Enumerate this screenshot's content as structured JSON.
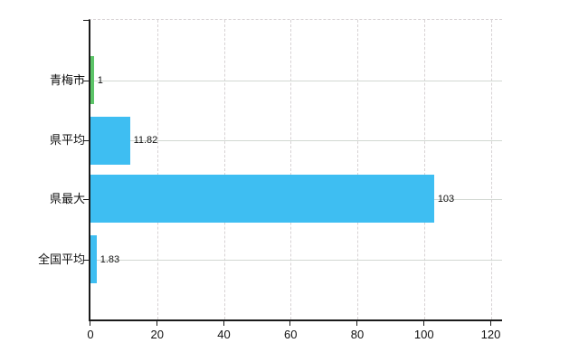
{
  "chart_data": {
    "type": "bar",
    "orientation": "horizontal",
    "title": "",
    "xlabel": "",
    "ylabel": "",
    "categories": [
      "青梅市",
      "県平均",
      "県最大",
      "全国平均"
    ],
    "values": [
      1,
      11.82,
      103,
      1.83
    ],
    "value_labels": [
      "1",
      "11.82",
      "103",
      "1.83"
    ],
    "bar_colors": [
      "#5cc468",
      "#3ebef2",
      "#3ebef2",
      "#3ebef2"
    ],
    "xticks": [
      0,
      20,
      40,
      60,
      80,
      100,
      120
    ],
    "xtick_labels": [
      "0",
      "20",
      "40",
      "60",
      "80",
      "100",
      "120"
    ],
    "xlim": [
      0,
      123.4
    ],
    "grid": true,
    "gridline_vertical_style": "dashed",
    "gridline_horizontal_style": "solid",
    "legend": false,
    "colors": {
      "background": "#ffffff",
      "axis": "#1a1a1a",
      "gridline": "#d5d4d4",
      "text": "#111111",
      "bar_green": "#5cc468",
      "bar_blue": "#3ebef2"
    }
  }
}
